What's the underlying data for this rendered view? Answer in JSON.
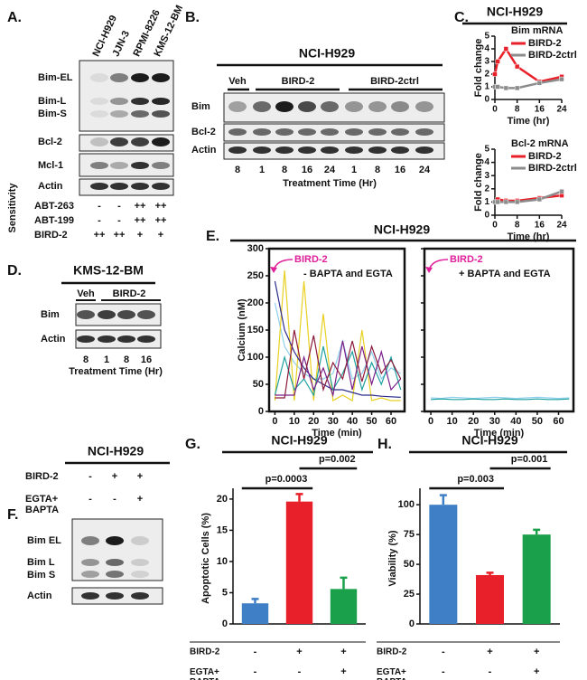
{
  "panels": {
    "A": {
      "label": "A.",
      "lanes": [
        "NCI-H929",
        "JJN-3",
        "RPMI-8226",
        "KMS-12-BM"
      ],
      "bands": [
        "Bim-EL",
        "Bim-L",
        "Bim-S",
        "Bcl-2",
        "Mcl-1",
        "Actin"
      ],
      "sensitivity_label": "Sensitivity",
      "rows": [
        {
          "name": "ABT-263",
          "cells": [
            "-",
            "-",
            "++",
            "++"
          ]
        },
        {
          "name": "ABT-199",
          "cells": [
            "-",
            "-",
            "++",
            "++"
          ]
        },
        {
          "name": "BIRD-2",
          "cells": [
            "++",
            "++",
            "+",
            "+"
          ]
        }
      ]
    },
    "B": {
      "label": "B.",
      "title": "NCI-H929",
      "groups": [
        "Veh",
        "BIRD-2",
        "BIRD-2ctrl"
      ],
      "bands": [
        "Bim",
        "Bcl-2",
        "Actin"
      ],
      "times": [
        "8",
        "1",
        "8",
        "16",
        "24",
        "1",
        "8",
        "16",
        "24"
      ],
      "xlabel": "Treatment Time (Hr)"
    },
    "C": {
      "label": "C.",
      "title": "NCI-H929"
    },
    "D": {
      "label": "D.",
      "title": "KMS-12-BM",
      "groups": [
        "Veh",
        "BIRD-2"
      ],
      "bands": [
        "Bim",
        "Actin"
      ],
      "times": [
        "8",
        "1",
        "8",
        "16"
      ],
      "xlabel": "Treatment Time (Hr)"
    },
    "E": {
      "label": "E.",
      "title": "NCI-H929"
    },
    "F": {
      "label": "F.",
      "title": "NCI-H929",
      "rows": [
        {
          "name": "BIRD-2",
          "cells": [
            "-",
            "+",
            "+"
          ]
        },
        {
          "name": "EGTA+\nBAPTA",
          "cells": [
            "-",
            "-",
            "+"
          ]
        }
      ],
      "bands": [
        "Bim EL",
        "Bim L",
        "Bim S",
        "Actin"
      ]
    },
    "G": {
      "label": "G."
    },
    "H": {
      "label": "H."
    }
  },
  "chart_data": [
    {
      "type": "line",
      "subtitle": "Bim mRNA",
      "xlabel": "Time (hr)",
      "ylabel": "Fold change",
      "x": [
        0,
        1,
        4,
        8,
        16,
        24
      ],
      "xlim": [
        0,
        24
      ],
      "xticks": [
        0,
        8,
        16,
        24
      ],
      "ylim": [
        0,
        5
      ],
      "yticks": [
        0,
        1,
        2,
        3,
        4,
        5
      ],
      "markers": true,
      "series": [
        {
          "name": "BIRD-2",
          "color": "#e8202a",
          "values": [
            2,
            3,
            4,
            2.6,
            1.4,
            1.8
          ]
        },
        {
          "name": "BIRD-2ctrl",
          "color": "#8c8c8c",
          "values": [
            1,
            1,
            0.9,
            0.9,
            1.3,
            1.6
          ]
        }
      ]
    },
    {
      "type": "line",
      "subtitle": "Bcl-2 mRNA",
      "xlabel": "Time (hr)",
      "ylabel": "Fold change",
      "x": [
        0,
        1,
        4,
        8,
        16,
        24
      ],
      "xlim": [
        0,
        24
      ],
      "xticks": [
        0,
        8,
        16,
        24
      ],
      "ylim": [
        0,
        5
      ],
      "yticks": [
        0,
        1,
        2,
        3,
        4,
        5
      ],
      "markers": true,
      "series": [
        {
          "name": "BIRD-2",
          "color": "#e8202a",
          "values": [
            1,
            1.2,
            1.1,
            1.1,
            1.3,
            1.5
          ]
        },
        {
          "name": "BIRD-2ctrl",
          "color": "#8c8c8c",
          "values": [
            1,
            1,
            1,
            1,
            1.2,
            1.8
          ]
        }
      ]
    },
    {
      "type": "line",
      "annotation": "BIRD-2",
      "condition": "- BAPTA and EGTA",
      "xlabel": "Time (min)",
      "ylabel": "Calcium (nM)",
      "x": [
        0,
        5,
        10,
        15,
        20,
        25,
        30,
        35,
        40,
        45,
        50,
        55,
        60,
        65
      ],
      "xlim": [
        -3,
        67
      ],
      "xticks": [
        0,
        10,
        20,
        30,
        40,
        50,
        60
      ],
      "ylim": [
        0,
        300
      ],
      "yticks": [
        0,
        50,
        100,
        150,
        200,
        250,
        300
      ],
      "box": true,
      "series": [
        {
          "color": "#8ed0ec",
          "values": [
            200,
            120,
            90,
            70,
            60,
            60,
            70,
            130,
            60,
            70,
            110,
            60,
            80,
            70
          ]
        },
        {
          "color": "#e8d020",
          "values": [
            20,
            260,
            20,
            240,
            20,
            180,
            20,
            30,
            20,
            150,
            20,
            25,
            20,
            20
          ]
        },
        {
          "color": "#2b2b8c",
          "values": [
            240,
            150,
            110,
            80,
            60,
            50,
            40,
            40,
            35,
            30,
            30,
            28,
            27,
            26
          ]
        },
        {
          "color": "#1fa0a0",
          "values": [
            30,
            100,
            40,
            60,
            30,
            120,
            40,
            70,
            110,
            40,
            90,
            50,
            100,
            40
          ]
        },
        {
          "color": "#7a1f8a",
          "values": [
            30,
            30,
            30,
            100,
            40,
            80,
            30,
            130,
            40,
            120,
            50,
            110,
            40,
            60
          ]
        },
        {
          "color": "#8b1a3a",
          "values": [
            25,
            25,
            150,
            60,
            140,
            40,
            90,
            60,
            130,
            55,
            120,
            70,
            95,
            60
          ]
        }
      ]
    },
    {
      "type": "line",
      "annotation": "BIRD-2",
      "condition": "+ BAPTA and EGTA",
      "xlabel": "Time (min)",
      "x": [
        0,
        5,
        10,
        15,
        20,
        25,
        30,
        35,
        40,
        45,
        50,
        55,
        60,
        65
      ],
      "xlim": [
        -3,
        67
      ],
      "xticks": [
        0,
        10,
        20,
        30,
        40,
        50,
        60
      ],
      "ylim": [
        0,
        300
      ],
      "yticks": [
        0,
        50,
        100,
        150,
        200,
        250,
        300
      ],
      "ytick_labels": false,
      "box": true,
      "series": [
        {
          "color": "#8ed0ec",
          "values": [
            25,
            24,
            26,
            25,
            24,
            25,
            26,
            25,
            24,
            25,
            26,
            25,
            24,
            25
          ]
        },
        {
          "color": "#1fa0a0",
          "values": [
            22,
            23,
            22,
            22,
            23,
            22,
            22,
            23,
            22,
            22,
            23,
            22,
            22,
            23
          ]
        }
      ]
    },
    {
      "type": "bar",
      "title": "NCI-H929",
      "ylabel": "Apoptotic Cells (%)",
      "categories": [
        null,
        null,
        null
      ],
      "values": [
        3.3,
        19.6,
        5.6
      ],
      "errors": [
        0.7,
        1.2,
        1.8
      ],
      "colors": [
        "#3f7fc6",
        "#e8202a",
        "#1aa04a"
      ],
      "ylim": [
        0,
        21
      ],
      "yticks": [
        0,
        5,
        10,
        15,
        20
      ],
      "annotations": [
        {
          "text": "p=0.0003",
          "from": 0,
          "to": 1
        },
        {
          "text": "p=0.002",
          "from": 1,
          "to": 2
        }
      ],
      "conditions": [
        {
          "name": "BIRD-2",
          "cells": [
            "-",
            "+",
            "+"
          ]
        },
        {
          "name": "EGTA+\nBAPTA",
          "cells": [
            "-",
            "-",
            "+"
          ]
        }
      ]
    },
    {
      "type": "bar",
      "title": "NCI-H929",
      "ylabel": "Viability (%)",
      "categories": [
        null,
        null,
        null
      ],
      "values": [
        100,
        41,
        75
      ],
      "errors": [
        8,
        2,
        4
      ],
      "colors": [
        "#3f7fc6",
        "#e8202a",
        "#1aa04a"
      ],
      "ylim": [
        0,
        110
      ],
      "yticks": [
        0,
        25,
        50,
        75,
        100
      ],
      "annotations": [
        {
          "text": "p=0.003",
          "from": 0,
          "to": 1
        },
        {
          "text": "p=0.001",
          "from": 1,
          "to": 2
        }
      ],
      "conditions": [
        {
          "name": "BIRD-2",
          "cells": [
            "-",
            "+",
            "+"
          ]
        },
        {
          "name": "EGTA+\nBAPTA",
          "cells": [
            "-",
            "-",
            "+"
          ]
        }
      ]
    }
  ]
}
